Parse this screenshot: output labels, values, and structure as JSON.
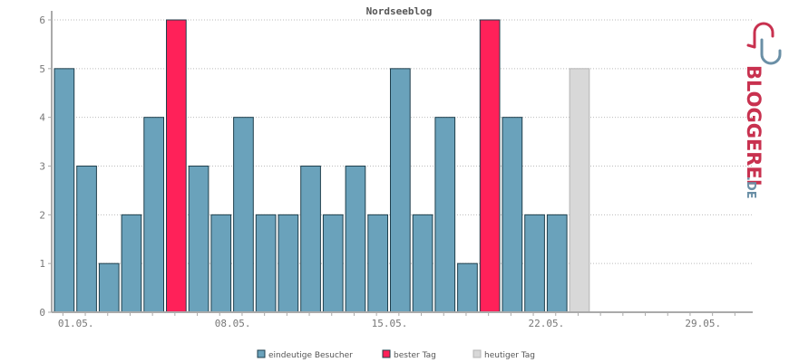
{
  "chart_data": {
    "type": "bar",
    "title": "Nordseeblog",
    "xlabel": "",
    "ylabel": "",
    "ylim": [
      0,
      6
    ],
    "yticks": [
      "0",
      "1",
      "2",
      "3",
      "4",
      "5",
      "6"
    ],
    "x_tick_labels": [
      "01.05.",
      "08.05.",
      "15.05.",
      "22.05.",
      "29.05."
    ],
    "days_in_axis": 31,
    "grid": true,
    "legend_position": "bottom",
    "values": [
      5,
      3,
      1,
      2,
      4,
      6,
      3,
      2,
      4,
      2,
      2,
      3,
      2,
      3,
      2,
      5,
      2,
      4,
      1,
      6,
      4,
      2,
      2,
      5
    ],
    "kinds": [
      "visitors",
      "visitors",
      "visitors",
      "visitors",
      "visitors",
      "best",
      "visitors",
      "visitors",
      "visitors",
      "visitors",
      "visitors",
      "visitors",
      "visitors",
      "visitors",
      "visitors",
      "visitors",
      "visitors",
      "visitors",
      "visitors",
      "best",
      "visitors",
      "visitors",
      "visitors",
      "today"
    ],
    "series": [
      {
        "key": "visitors",
        "name": "eindeutige Besucher",
        "color": "#6aa2bb"
      },
      {
        "key": "best",
        "name": "bester Tag",
        "color": "#ff2159"
      },
      {
        "key": "today",
        "name": "heutiger Tag",
        "color": "#d8d8d8"
      }
    ]
  },
  "logo": {
    "text": "BLOGGEREI",
    "suffix": ".DE"
  },
  "colors": {
    "axis": "#aaaaaa",
    "grid": "#bbbbbb",
    "bar_outline": "#1f3f4c",
    "today_outline": "#b5b5b5",
    "logo_red": "#c8314f",
    "logo_blue": "#6a8fa6"
  }
}
